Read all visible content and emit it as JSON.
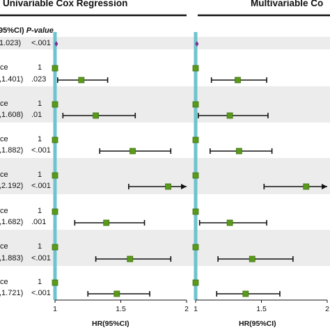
{
  "chart_data": [
    {
      "type": "forest",
      "title": "Univariable Cox Regression",
      "xlabel": "HR(95%CI)",
      "xlim": [
        1,
        2
      ],
      "xticks": [
        "1",
        "1.5",
        "2"
      ],
      "reference_line": 1,
      "columns": {
        "ci_header": "95%CI)",
        "p_header": "P-value"
      },
      "rows": [
        {
          "label": "",
          "ci_text": "1.023)",
          "p": "<.001",
          "hr": 1.01,
          "lo": 1.0,
          "hi": 1.02,
          "ref": false,
          "shaded": true,
          "marker": "diamond"
        },
        {
          "label": "ce",
          "ci_text": "",
          "p": "1",
          "hr": 1.0,
          "ref": true,
          "shaded": false
        },
        {
          "label": "",
          "ci_text": ",1.401)",
          "p": ".023",
          "hr": 1.2,
          "lo": 1.02,
          "hi": 1.4,
          "ref": false,
          "shaded": false
        },
        {
          "label": "ce",
          "ci_text": "",
          "p": "1",
          "hr": 1.0,
          "ref": true,
          "shaded": true
        },
        {
          "label": "",
          "ci_text": ",1.608)",
          "p": ".01",
          "hr": 1.31,
          "lo": 1.06,
          "hi": 1.61,
          "ref": false,
          "shaded": true
        },
        {
          "label": "ce",
          "ci_text": "",
          "p": "1",
          "hr": 1.0,
          "ref": true,
          "shaded": false
        },
        {
          "label": "",
          "ci_text": ",1.882)",
          "p": "<.001",
          "hr": 1.59,
          "lo": 1.34,
          "hi": 1.88,
          "ref": false,
          "shaded": false
        },
        {
          "label": "ce",
          "ci_text": "",
          "p": "1",
          "hr": 1.0,
          "ref": true,
          "shaded": true
        },
        {
          "label": "",
          "ci_text": ",2.192)",
          "p": "<.001",
          "hr": 1.86,
          "lo": 1.56,
          "hi": 2.19,
          "ref": false,
          "shaded": true,
          "arrow": true
        },
        {
          "label": "ce",
          "ci_text": "",
          "p": "1",
          "hr": 1.0,
          "ref": true,
          "shaded": false
        },
        {
          "label": "",
          "ci_text": ",1.682)",
          "p": ".001",
          "hr": 1.39,
          "lo": 1.15,
          "hi": 1.68,
          "ref": false,
          "shaded": false
        },
        {
          "label": "ce",
          "ci_text": "",
          "p": "1",
          "hr": 1.0,
          "ref": true,
          "shaded": true
        },
        {
          "label": "",
          "ci_text": ",1.883)",
          "p": "<.001",
          "hr": 1.57,
          "lo": 1.31,
          "hi": 1.88,
          "ref": false,
          "shaded": true
        },
        {
          "label": "ce",
          "ci_text": "",
          "p": "1",
          "hr": 1.0,
          "ref": true,
          "shaded": false
        },
        {
          "label": "",
          "ci_text": ",1.721)",
          "p": "<.001",
          "hr": 1.47,
          "lo": 1.25,
          "hi": 1.72,
          "ref": false,
          "shaded": false
        }
      ]
    },
    {
      "type": "forest",
      "title": "Multivariable Co",
      "xlabel": "HR(95%CI)",
      "xlim": [
        1,
        2
      ],
      "xticks": [
        "1",
        "1.5",
        "2"
      ],
      "reference_line": 1,
      "rows": [
        {
          "hr": 1.01,
          "lo": 1.0,
          "hi": 1.02,
          "ref": false,
          "marker": "diamond"
        },
        {
          "hr": 1.0,
          "ref": true
        },
        {
          "hr": 1.32,
          "lo": 1.12,
          "hi": 1.54,
          "ref": false
        },
        {
          "hr": 1.0,
          "ref": true
        },
        {
          "hr": 1.26,
          "lo": 1.02,
          "hi": 1.55,
          "ref": false
        },
        {
          "hr": 1.0,
          "ref": true
        },
        {
          "hr": 1.33,
          "lo": 1.11,
          "hi": 1.58,
          "ref": false
        },
        {
          "hr": 1.0,
          "ref": true
        },
        {
          "hr": 1.84,
          "lo": 1.52,
          "hi": 2.2,
          "ref": false,
          "arrow": true
        },
        {
          "hr": 1.0,
          "ref": true
        },
        {
          "hr": 1.26,
          "lo": 1.03,
          "hi": 1.54,
          "ref": false
        },
        {
          "hr": 1.0,
          "ref": true
        },
        {
          "hr": 1.43,
          "lo": 1.17,
          "hi": 1.74,
          "ref": false
        },
        {
          "hr": 1.0,
          "ref": true
        },
        {
          "hr": 1.38,
          "lo": 1.16,
          "hi": 1.64,
          "ref": false
        }
      ]
    }
  ],
  "colors": {
    "marker": "#5a9a1b",
    "marker_edge": "#3e7010",
    "diamond": "#7a2f8f",
    "ref_line": "#6fc3cf",
    "ci_line": "#111111",
    "band": "#ececec"
  }
}
